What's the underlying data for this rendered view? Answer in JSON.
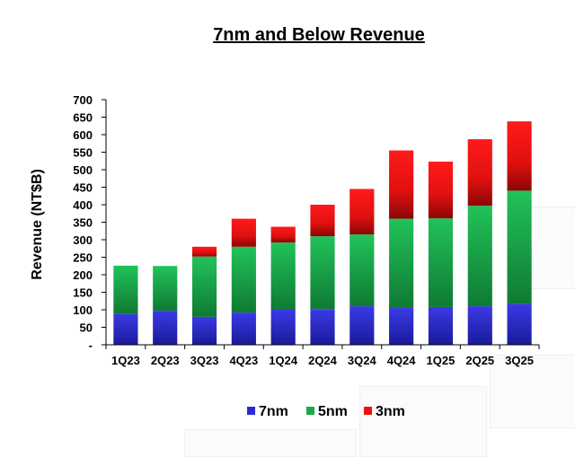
{
  "chart_data": {
    "type": "bar",
    "stacked": true,
    "title": "7nm and Below Revenue",
    "xlabel": "",
    "ylabel": "Revenue (NT$B)",
    "ylim": [
      0,
      700
    ],
    "y_ticks": [
      "-",
      "50",
      "100",
      "150",
      "200",
      "250",
      "300",
      "350",
      "400",
      "450",
      "500",
      "550",
      "600",
      "650",
      "700"
    ],
    "categories": [
      "1Q23",
      "2Q23",
      "3Q23",
      "4Q23",
      "1Q24",
      "2Q24",
      "3Q24",
      "4Q24",
      "1Q25",
      "2Q25",
      "3Q25"
    ],
    "series": [
      {
        "name": "7nm",
        "color": "#2b2bd0",
        "values": [
          88,
          97,
          80,
          92,
          100,
          102,
          110,
          105,
          108,
          110,
          117
        ]
      },
      {
        "name": "5nm",
        "color": "#1ea84a",
        "values": [
          138,
          128,
          172,
          188,
          192,
          208,
          205,
          255,
          253,
          287,
          323
        ]
      },
      {
        "name": "3nm",
        "color": "#f01010",
        "values": [
          0,
          0,
          28,
          80,
          45,
          90,
          130,
          195,
          162,
          190,
          198
        ]
      }
    ],
    "grid": false,
    "legend_position": "bottom"
  }
}
